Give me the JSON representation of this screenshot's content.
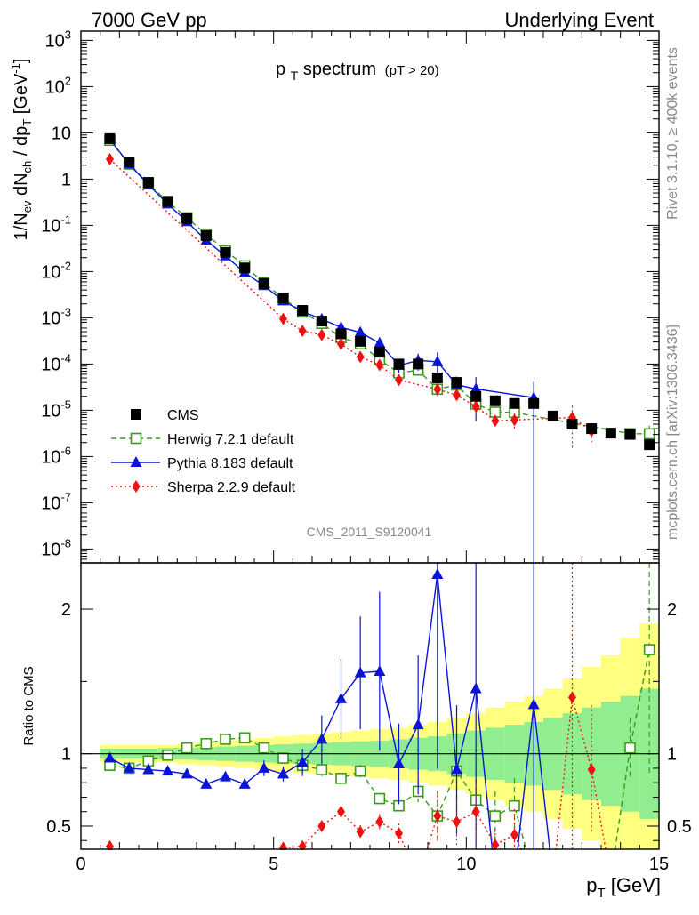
{
  "header": {
    "left": "7000 GeV pp",
    "right": "Underlying Event"
  },
  "side_labels": {
    "rivet": "Rivet 3.1.10, ≥ 400k events",
    "mcplots": "mcplots.cern.ch [arXiv:1306.3436]"
  },
  "analysis_id": "CMS_2011_S9120041",
  "colors": {
    "data": "#000000",
    "herwig": "#3a9a1a",
    "pythia": "#0a14d8",
    "sherpa": "#ee1111",
    "band_inner": "#90ee90",
    "band_outer": "#ffff80"
  },
  "chart_data": {
    "type": "line",
    "title_main": "p",
    "title_sub": "T",
    "title_rest": " spectrum",
    "title_extra": "(pT > 20)",
    "ylabel_parts": [
      "1/N",
      "ev",
      " dN",
      "ch",
      " / dp",
      "T",
      " [GeV",
      "-1",
      "]"
    ],
    "xlabel_main": "p",
    "xlabel_sub": "T",
    "xlabel_rest": " [GeV]",
    "ratio_ylabel": "Ratio to CMS",
    "xlim": [
      0,
      15
    ],
    "ylim_log": [
      -8.3,
      3.2
    ],
    "ratio_ylim": [
      0.34,
      2.32
    ],
    "x_ticks": [
      "0",
      "5",
      "10",
      "15"
    ],
    "y_tick_exp": [
      "-8",
      "-7",
      "-6",
      "-5",
      "-4",
      "-3",
      "-2",
      "-1",
      "0",
      "1",
      "2",
      "3"
    ],
    "ratio_ticks": [
      "0.5",
      "1",
      "2"
    ],
    "legend": [
      "CMS",
      "Herwig 7.2.1 default",
      "Pythia 8.183 default",
      "Sherpa 2.2.9 default"
    ],
    "x": [
      0.75,
      1.25,
      1.75,
      2.25,
      2.75,
      3.25,
      3.75,
      4.25,
      4.75,
      5.25,
      5.75,
      6.25,
      6.75,
      7.25,
      7.75,
      8.25,
      8.75,
      9.25,
      9.75,
      10.25,
      10.75,
      11.25,
      11.75,
      12.25,
      12.75,
      13.25,
      13.75,
      14.25,
      14.75
    ],
    "cms": [
      7.5,
      2.35,
      0.85,
      0.33,
      0.14,
      0.06,
      0.026,
      0.012,
      0.0055,
      0.0027,
      0.00145,
      0.00085,
      0.00045,
      0.00031,
      0.00018,
      0.0001,
      0.0001,
      5e-05,
      4e-05,
      2e-05,
      1.6e-05,
      1.4e-05,
      1.4e-05,
      7.5e-06,
      5e-06,
      4e-06,
      3.2e-06,
      3e-06,
      1.8e-06
    ],
    "band_outer": [
      0.06,
      0.06,
      0.06,
      0.06,
      0.07,
      0.08,
      0.09,
      0.1,
      0.11,
      0.12,
      0.13,
      0.14,
      0.15,
      0.16,
      0.17,
      0.18,
      0.2,
      0.22,
      0.25,
      0.28,
      0.32,
      0.36,
      0.4,
      0.45,
      0.52,
      0.6,
      0.68,
      0.8,
      0.9
    ],
    "band_inner": [
      0.035,
      0.035,
      0.035,
      0.04,
      0.04,
      0.045,
      0.05,
      0.055,
      0.06,
      0.065,
      0.07,
      0.075,
      0.08,
      0.085,
      0.09,
      0.1,
      0.11,
      0.12,
      0.14,
      0.16,
      0.18,
      0.2,
      0.22,
      0.25,
      0.28,
      0.32,
      0.36,
      0.4,
      0.45
    ],
    "series": [
      {
        "name": "Herwig 7.2.1 default",
        "ratio": [
          0.92,
          0.9,
          0.95,
          0.99,
          1.04,
          1.07,
          1.1,
          1.11,
          1.04,
          0.97,
          0.92,
          0.89,
          0.83,
          0.88,
          0.69,
          0.64,
          0.74,
          0.57,
          0.88,
          0.68,
          0.57,
          0.64,
          null,
          null,
          null,
          null,
          null,
          1.04,
          1.72
        ],
        "err": [
          0.02,
          0.02,
          0.02,
          0.02,
          0.02,
          0.02,
          0.02,
          0.03,
          0.03,
          0.04,
          0.05,
          0.06,
          0.05,
          0.05,
          0.05,
          0.06,
          0.1,
          0.3,
          0.3,
          0.3,
          0.3,
          0.3,
          0.3,
          0.3,
          0.3,
          0.3,
          0.3,
          0.2,
          0.5
        ]
      },
      {
        "name": "Pythia 8.183 default",
        "ratio": [
          0.97,
          0.9,
          0.89,
          0.88,
          0.86,
          0.79,
          0.84,
          0.79,
          0.9,
          0.86,
          0.94,
          1.1,
          1.38,
          1.56,
          1.57,
          0.93,
          1.2,
          2.24,
          0.89,
          1.45,
          null,
          null,
          1.34,
          null,
          null,
          null,
          null,
          null,
          null
        ],
        "err": [
          0.02,
          0.02,
          0.02,
          0.02,
          0.02,
          0.02,
          0.03,
          0.03,
          0.06,
          0.06,
          0.1,
          0.15,
          0.2,
          0.25,
          0.35,
          0.3,
          0.4,
          0.6,
          0.5,
          0.8,
          0.8,
          0.8,
          1.2,
          0.8,
          0.8,
          0.8,
          0.8,
          0.8,
          0.8
        ]
      },
      {
        "name": "Sherpa 2.2.9 default",
        "ratio": [
          0.36,
          null,
          null,
          null,
          null,
          null,
          null,
          null,
          null,
          0.35,
          0.36,
          0.5,
          0.6,
          0.46,
          0.53,
          0.45,
          null,
          0.57,
          0.53,
          0.6,
          0.37,
          0.44,
          null,
          null,
          1.39,
          0.89,
          null,
          null,
          null
        ],
        "err": [
          0.02,
          0.02,
          0.02,
          0.02,
          0.02,
          0.02,
          0.02,
          0.02,
          0.02,
          0.03,
          0.04,
          0.05,
          0.06,
          0.1,
          0.1,
          0.15,
          0.2,
          0.3,
          0.3,
          0.3,
          0.3,
          0.4,
          0.4,
          0.5,
          0.8,
          0.5,
          0.5,
          0.5,
          0.5
        ]
      }
    ]
  }
}
